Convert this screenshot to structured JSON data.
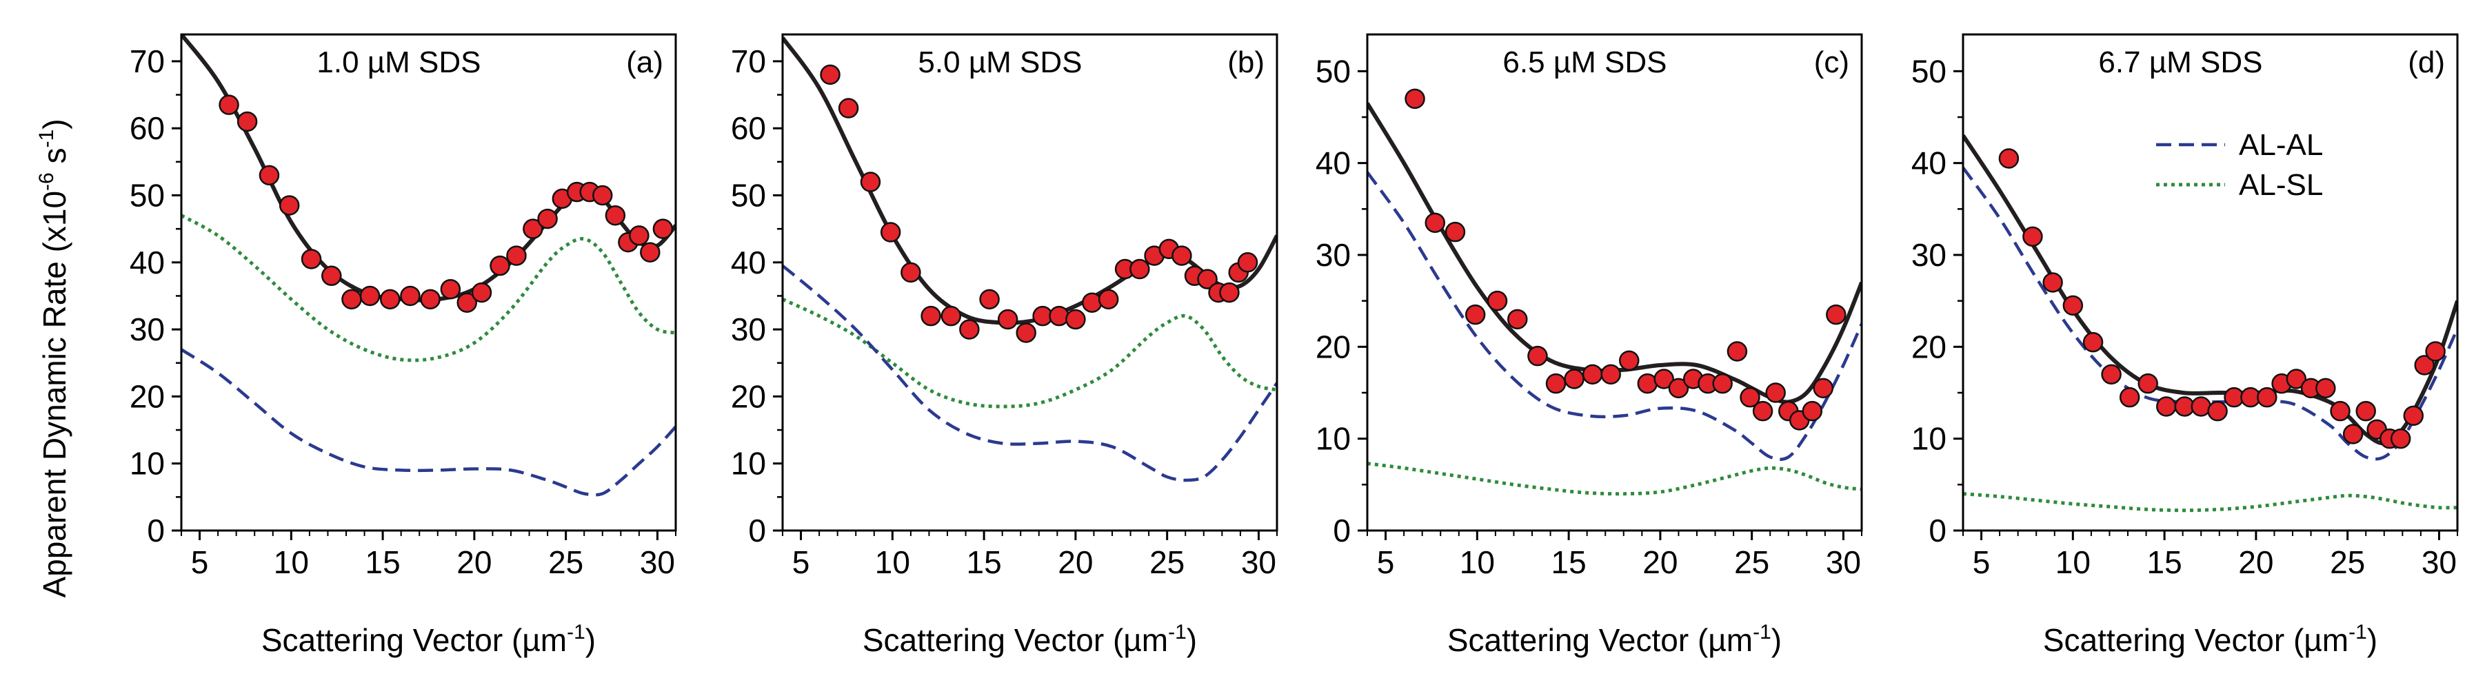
{
  "figure": {
    "ylabel": {
      "main": "Apparent Dynamic Rate (x10",
      "exp": "-6",
      "unit": " s",
      "unit_exp": "-1",
      "close": ")"
    },
    "legend": [
      {
        "label": "AL-AL",
        "color": "#2b3a8f",
        "style": "dashed"
      },
      {
        "label": "AL-SL",
        "color": "#2e8b3c",
        "style": "dotted"
      }
    ],
    "colors": {
      "fit": "#231f20",
      "points": "#e2232a",
      "point_edge": "#111111",
      "al_al": "#2b3a8f",
      "al_sl": "#2e8b3c"
    }
  },
  "chart_data": [
    {
      "type": "line+scatter",
      "title": "1.0 µM SDS",
      "tag": "(a)",
      "xlabel": {
        "main": "Scattering Vector (µm",
        "exp": "-1",
        "close": ")"
      },
      "xlim": [
        4,
        31
      ],
      "ylim": [
        0,
        74
      ],
      "xticks": [
        5,
        10,
        15,
        20,
        25,
        30
      ],
      "yticks": [
        0,
        10,
        20,
        30,
        40,
        50,
        60,
        70
      ],
      "scatter": {
        "x": [
          6.6,
          7.6,
          8.8,
          9.9,
          11.1,
          12.2,
          13.3,
          14.3,
          15.4,
          16.5,
          17.6,
          18.7,
          19.6,
          20.4,
          21.4,
          22.3,
          23.2,
          24.0,
          24.8,
          25.6,
          26.3,
          27.0,
          27.7,
          28.4,
          29.0,
          29.6,
          30.3
        ],
        "y": [
          63.5,
          61,
          53,
          48.5,
          40.5,
          38,
          34.5,
          35,
          34.5,
          35,
          34.5,
          36,
          34,
          35.5,
          39.5,
          41,
          45,
          46.5,
          49.5,
          50.5,
          50.5,
          50,
          47,
          43,
          44,
          41.5,
          45
        ]
      },
      "series": [
        {
          "name": "Fit",
          "x": [
            4,
            6,
            8,
            10,
            12,
            14,
            16,
            18,
            20,
            22,
            24,
            25,
            26,
            27,
            28,
            29,
            30,
            31
          ],
          "y": [
            74,
            67,
            57,
            46,
            39,
            35.5,
            34.5,
            34.5,
            36,
            40,
            46,
            49,
            50.5,
            49.5,
            46,
            43,
            42.5,
            45.5
          ]
        },
        {
          "name": "AL-SL",
          "x": [
            4,
            6,
            8,
            10,
            12,
            14,
            16,
            18,
            20,
            22,
            24,
            25,
            26,
            27,
            28,
            29,
            30,
            31
          ],
          "y": [
            47,
            44,
            39.5,
            34.5,
            30,
            27,
            25.5,
            25.8,
            28,
            33,
            40,
            42.5,
            43.5,
            41.5,
            37,
            32.5,
            30,
            29.5
          ]
        },
        {
          "name": "AL-AL",
          "x": [
            4,
            6,
            8,
            10,
            12,
            14,
            16,
            18,
            20,
            22,
            24,
            25,
            26,
            27,
            28,
            29,
            30,
            31
          ],
          "y": [
            27,
            23.5,
            19,
            14.5,
            11.5,
            9.5,
            9,
            9,
            9.2,
            9,
            7.5,
            6.5,
            5.5,
            5.5,
            7.5,
            10,
            12.5,
            15.5
          ]
        }
      ]
    },
    {
      "type": "line+scatter",
      "title": "5.0 µM SDS",
      "tag": "(b)",
      "xlabel": {
        "main": "Scattering Vector (µm",
        "exp": "-1",
        "close": ")"
      },
      "xlim": [
        4,
        31
      ],
      "ylim": [
        0,
        74
      ],
      "xticks": [
        5,
        10,
        15,
        20,
        25,
        30
      ],
      "yticks": [
        0,
        10,
        20,
        30,
        40,
        50,
        60,
        70
      ],
      "scatter": {
        "x": [
          6.6,
          7.6,
          8.8,
          9.9,
          11.0,
          12.1,
          13.2,
          14.2,
          15.3,
          16.3,
          17.3,
          18.2,
          19.1,
          20.0,
          20.9,
          21.8,
          22.7,
          23.5,
          24.3,
          25.1,
          25.8,
          26.5,
          27.2,
          27.8,
          28.4,
          28.9,
          29.4
        ],
        "y": [
          68,
          63,
          52,
          44.5,
          38.5,
          32,
          32,
          30,
          34.5,
          31.5,
          29.5,
          32,
          32,
          31.5,
          34,
          34.5,
          39,
          39,
          41,
          42,
          41,
          38,
          37.5,
          35.5,
          35.5,
          38.5,
          40
        ]
      },
      "series": [
        {
          "name": "Fit",
          "x": [
            4,
            6,
            8,
            10,
            12,
            14,
            16,
            18,
            20,
            22,
            24,
            25,
            26,
            27,
            28,
            29,
            30,
            31
          ],
          "y": [
            73.5,
            66,
            55,
            44,
            36,
            32,
            31,
            31.5,
            33.5,
            36.5,
            40,
            41,
            40.5,
            38.5,
            36.5,
            36.5,
            39,
            44
          ]
        },
        {
          "name": "AL-SL",
          "x": [
            4,
            6,
            8,
            10,
            12,
            14,
            16,
            18,
            20,
            22,
            24,
            25,
            26,
            27,
            28,
            29,
            30,
            31
          ],
          "y": [
            34.5,
            32,
            29,
            25,
            21,
            19,
            18.5,
            19,
            21,
            24,
            29,
            31,
            32,
            30,
            26,
            23,
            21.5,
            21
          ]
        },
        {
          "name": "AL-AL",
          "x": [
            4,
            6,
            8,
            10,
            12,
            14,
            16,
            18,
            20,
            22,
            24,
            25,
            26,
            27,
            28,
            29,
            30,
            31
          ],
          "y": [
            39.5,
            35,
            30,
            24,
            18,
            14.5,
            13,
            13,
            13.3,
            12.5,
            9.5,
            8,
            7.5,
            8,
            10.5,
            14,
            18,
            22
          ]
        }
      ]
    },
    {
      "type": "line+scatter",
      "title": "6.5 µM SDS",
      "tag": "(c)",
      "xlabel": {
        "main": "Scattering Vector (µm",
        "exp": "-1",
        "close": ")"
      },
      "xlim": [
        4,
        31
      ],
      "ylim": [
        0,
        54
      ],
      "xticks": [
        5,
        10,
        15,
        20,
        25,
        30
      ],
      "yticks": [
        0,
        10,
        20,
        30,
        40,
        50
      ],
      "scatter": {
        "x": [
          6.6,
          7.7,
          8.8,
          9.9,
          11.1,
          12.2,
          13.3,
          14.3,
          15.3,
          16.3,
          17.3,
          18.3,
          19.3,
          20.2,
          21.0,
          21.8,
          22.6,
          23.4,
          24.2,
          24.9,
          25.6,
          26.3,
          27.0,
          27.6,
          28.3,
          28.9,
          29.6
        ],
        "y": [
          47,
          33.5,
          32.5,
          23.5,
          25,
          23,
          19,
          16,
          16.5,
          17,
          17,
          18.5,
          16,
          16.5,
          15.5,
          16.5,
          16,
          16,
          19.5,
          14.5,
          13,
          15,
          13,
          12,
          13,
          15.5,
          23.5
        ]
      },
      "series": [
        {
          "name": "Fit",
          "x": [
            4,
            6,
            8,
            10,
            12,
            14,
            16,
            18,
            20,
            22,
            24,
            25,
            26,
            27,
            28,
            29,
            30,
            31
          ],
          "y": [
            46.5,
            40,
            33,
            26.5,
            21.5,
            18.5,
            17.5,
            17.5,
            18,
            18,
            16.5,
            15.5,
            14.5,
            14,
            15,
            18,
            22,
            27
          ]
        },
        {
          "name": "AL-AL",
          "x": [
            4,
            6,
            8,
            10,
            12,
            14,
            16,
            18,
            20,
            22,
            24,
            25,
            26,
            27,
            28,
            29,
            30,
            31
          ],
          "y": [
            39,
            33.5,
            27,
            21,
            16.5,
            13.5,
            12.5,
            12.5,
            13.3,
            13,
            11,
            9.5,
            8,
            8,
            10.5,
            14,
            18,
            22.5
          ]
        },
        {
          "name": "AL-SL",
          "x": [
            4,
            6,
            8,
            10,
            12,
            14,
            16,
            18,
            20,
            22,
            24,
            25,
            26,
            27,
            28,
            29,
            30,
            31
          ],
          "y": [
            7.3,
            6.8,
            6.2,
            5.6,
            5,
            4.5,
            4.1,
            4,
            4.2,
            5,
            6,
            6.5,
            6.8,
            6.6,
            6,
            5.2,
            4.7,
            4.5
          ]
        }
      ]
    },
    {
      "type": "line+scatter",
      "title": "6.7 µM SDS",
      "tag": "(d)",
      "xlabel": {
        "main": "Scattering Vector (µm",
        "exp": "-1",
        "close": ")"
      },
      "xlim": [
        4,
        31
      ],
      "ylim": [
        0,
        54
      ],
      "xticks": [
        5,
        10,
        15,
        20,
        25,
        30
      ],
      "yticks": [
        0,
        10,
        20,
        30,
        40,
        50
      ],
      "legend_location": "upper-middle",
      "scatter": {
        "x": [
          6.5,
          7.8,
          8.9,
          10.0,
          11.1,
          12.1,
          13.1,
          14.1,
          15.1,
          16.1,
          17.0,
          17.9,
          18.8,
          19.7,
          20.6,
          21.4,
          22.2,
          23.0,
          23.8,
          24.6,
          25.3,
          26.0,
          26.6,
          27.3,
          27.9,
          28.6,
          29.2,
          29.8
        ],
        "y": [
          40.5,
          32,
          27,
          24.5,
          20.5,
          17,
          14.5,
          16,
          13.5,
          13.5,
          13.5,
          13,
          14.5,
          14.5,
          14.5,
          16,
          16.5,
          15.5,
          15.5,
          13,
          10.5,
          13,
          11,
          10,
          10,
          12.5,
          18,
          19.5
        ]
      },
      "series": [
        {
          "name": "Fit",
          "x": [
            4,
            6,
            8,
            10,
            12,
            14,
            16,
            18,
            20,
            22,
            24,
            25,
            26,
            27,
            28,
            29,
            30,
            31
          ],
          "y": [
            43,
            37,
            30.5,
            24,
            19,
            16,
            15,
            15,
            15,
            15.2,
            14,
            12.5,
            10.5,
            9.5,
            11,
            14.5,
            19,
            25
          ]
        },
        {
          "name": "AL-AL",
          "x": [
            4,
            6,
            8,
            10,
            12,
            14,
            16,
            18,
            20,
            22,
            24,
            25,
            26,
            27,
            28,
            29,
            30,
            31
          ],
          "y": [
            39.5,
            34,
            27.5,
            21.5,
            17,
            14.5,
            14,
            14,
            14,
            13.8,
            11.5,
            9.5,
            8,
            8,
            10,
            13.5,
            17.5,
            22
          ]
        },
        {
          "name": "AL-SL",
          "x": [
            4,
            6,
            8,
            10,
            12,
            14,
            16,
            18,
            20,
            22,
            24,
            25,
            26,
            27,
            28,
            29,
            30,
            31
          ],
          "y": [
            4,
            3.7,
            3.3,
            2.9,
            2.6,
            2.3,
            2.2,
            2.3,
            2.6,
            3.1,
            3.6,
            3.8,
            3.7,
            3.4,
            3,
            2.7,
            2.5,
            2.5
          ]
        }
      ]
    }
  ]
}
